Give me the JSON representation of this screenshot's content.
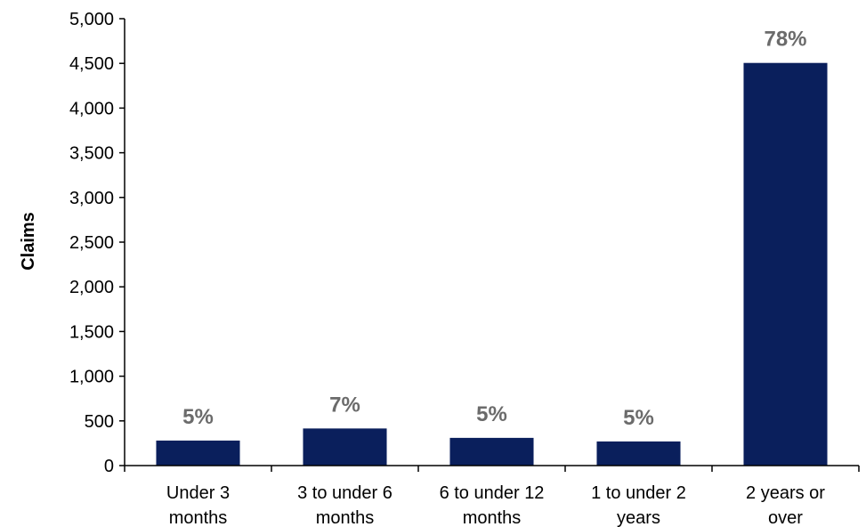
{
  "chart_data": {
    "type": "bar",
    "categories": [
      [
        "Under 3",
        "months"
      ],
      [
        "3 to under 6",
        "months"
      ],
      [
        "6 to under 12",
        "months"
      ],
      [
        "1 to under 2",
        "years"
      ],
      [
        "2 years or",
        "over"
      ]
    ],
    "values": [
      280,
      415,
      310,
      270,
      4505
    ],
    "data_labels": [
      "5%",
      "7%",
      "5%",
      "5%",
      "78%"
    ],
    "ylabel": "Claims",
    "xlabel": "",
    "title": "",
    "ylim": [
      0,
      5000
    ],
    "yticks": [
      0,
      500,
      1000,
      1500,
      2000,
      2500,
      3000,
      3500,
      4000,
      4500,
      5000
    ],
    "ytick_labels": [
      "0",
      "500",
      "1,000",
      "1,500",
      "2,000",
      "2,500",
      "3,000",
      "3,500",
      "4,000",
      "4,500",
      "5,000"
    ],
    "bar_color": "#0a1f5c",
    "label_color": "#6b6b6b",
    "grid": false,
    "legend": "none"
  }
}
